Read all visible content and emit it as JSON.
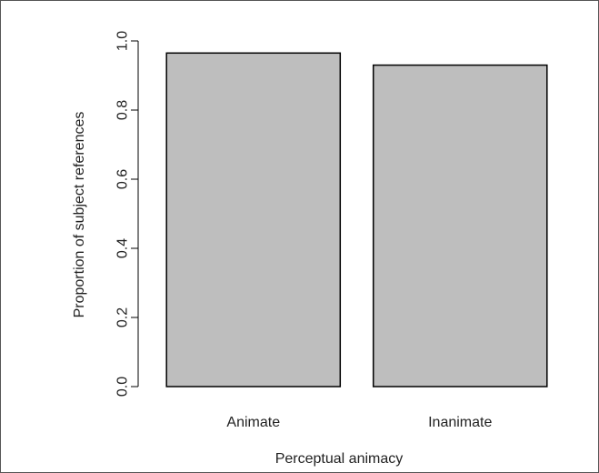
{
  "chart_data": {
    "type": "bar",
    "categories": [
      "Animate",
      "Inanimate"
    ],
    "values": [
      0.965,
      0.93
    ],
    "xlabel": "Perceptual animacy",
    "ylabel": "Proportion of subject references",
    "ylim": [
      0,
      1.0
    ],
    "yticks": [
      "0.0",
      "0.2",
      "0.4",
      "0.6",
      "0.8",
      "1.0"
    ],
    "grid": false,
    "bar_color": "#bebebe",
    "bar_border_color": "#000000"
  }
}
